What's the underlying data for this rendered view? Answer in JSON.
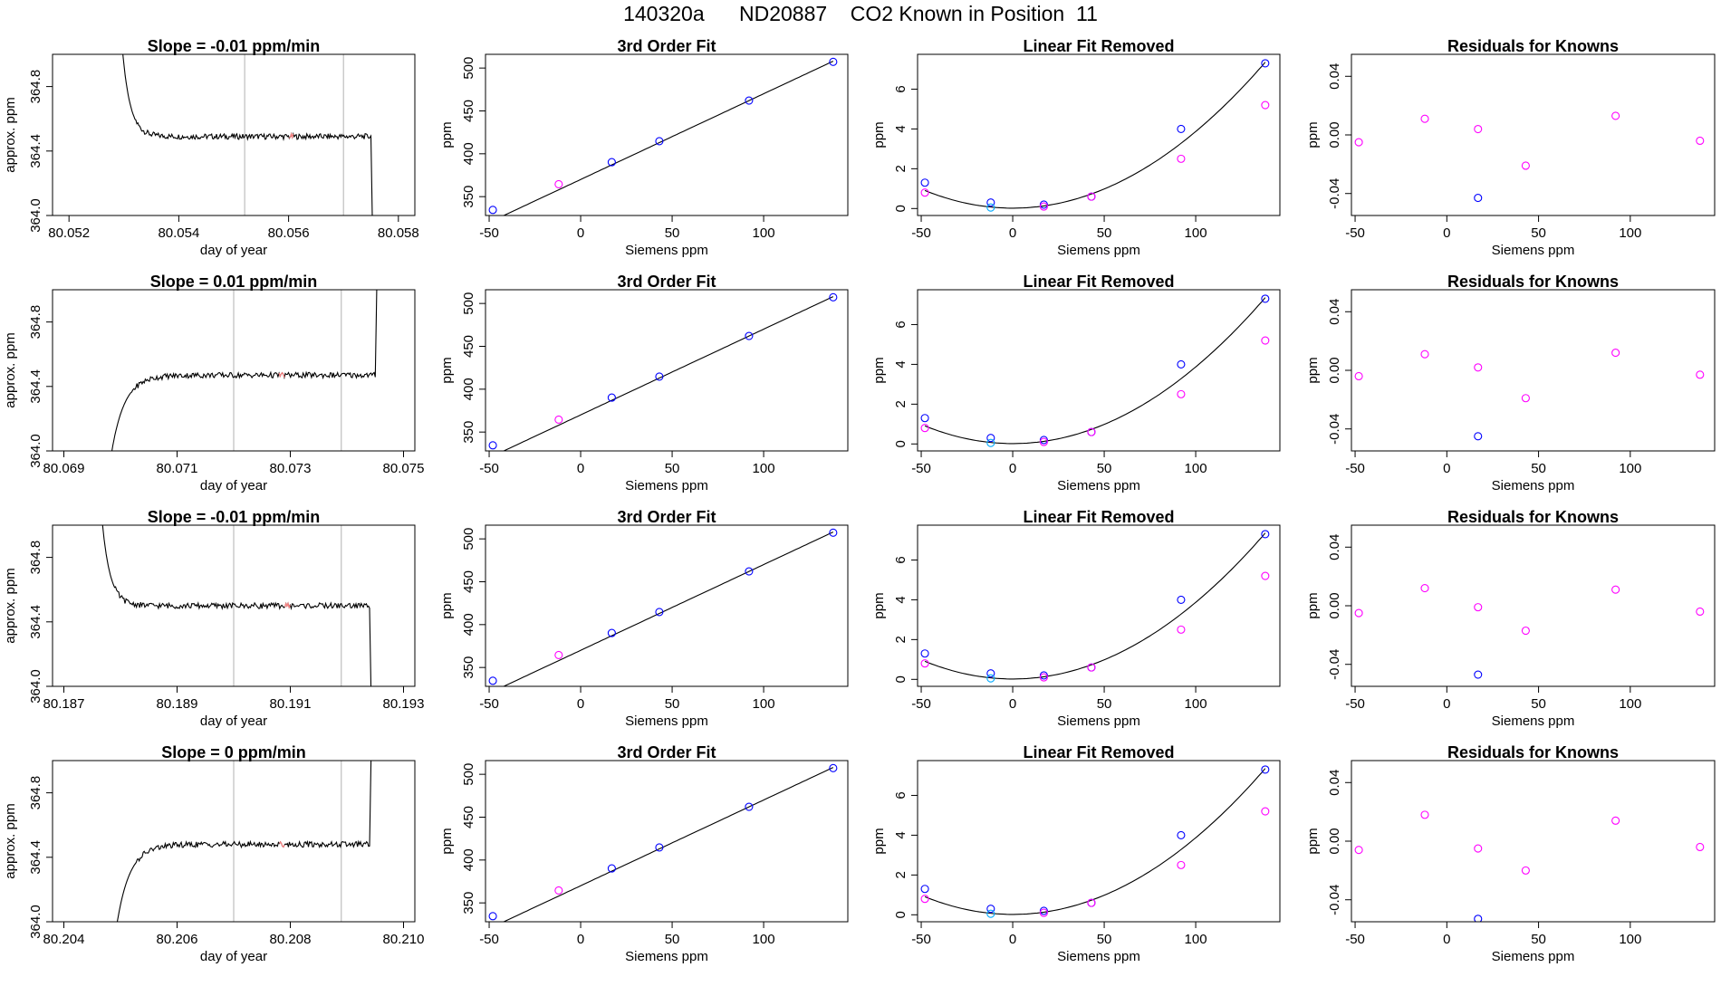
{
  "title": "140320a      ND20887    CO2 Known in Position  11",
  "colors": {
    "frame": "#000000",
    "trace": "#000000",
    "trace_highlight": "#ff8080",
    "vline": "#bebebe",
    "fit_line": "#000000",
    "point_blue": "#0000ff",
    "point_lightblue": "#00aaff",
    "point_magenta": "#ff00ff"
  },
  "chart_data": [
    {
      "type": "line",
      "row": 0,
      "col": 0,
      "title": "Slope =  -0.01  ppm/min",
      "xlabel": "day of year",
      "ylabel": "approx. ppm",
      "xlim": [
        80.0517,
        80.0583
      ],
      "ylim": [
        364.0,
        365.0
      ],
      "xticks": [
        80.052,
        80.054,
        80.056,
        80.058
      ],
      "xtick_labels": [
        "80.052",
        "80.054",
        "80.056",
        "80.058"
      ],
      "yticks": [
        364.0,
        364.4,
        364.8
      ],
      "ytick_labels": [
        "364.0",
        "364.4",
        "364.8"
      ],
      "vlines": [
        80.0552,
        80.057
      ],
      "shape": "down",
      "x_start": 80.0529,
      "x_settle": 80.0534,
      "x_end": 80.0575,
      "plateau": 364.49,
      "highlight": [
        80.056,
        80.0561
      ]
    },
    {
      "type": "scatter",
      "row": 0,
      "col": 1,
      "title": "3rd Order Fit",
      "xlabel": "Siemens ppm",
      "ylabel": "ppm",
      "xlim": [
        -52,
        146
      ],
      "ylim": [
        328,
        516
      ],
      "xticks": [
        -50,
        0,
        50,
        100
      ],
      "yticks": [
        350,
        400,
        450,
        500
      ],
      "fit": {
        "type": "poly",
        "coef": [
          370.0,
          1.0,
          0.0,
          0.0
        ],
        "range": [
          -48,
          138
        ]
      },
      "points": [
        {
          "x": -48,
          "y": 334.5,
          "color": "blue"
        },
        {
          "x": -12,
          "y": 364.5,
          "color": "magenta"
        },
        {
          "x": 17,
          "y": 390.2,
          "color": "blue"
        },
        {
          "x": 43,
          "y": 414.7,
          "color": "blue"
        },
        {
          "x": 92,
          "y": 462.1,
          "color": "blue"
        },
        {
          "x": 138,
          "y": 507.2,
          "color": "blue"
        }
      ]
    },
    {
      "type": "scatter",
      "row": 0,
      "col": 2,
      "title": "Linear Fit Removed",
      "xlabel": "Siemens ppm",
      "ylabel": "ppm",
      "xlim": [
        -52,
        146
      ],
      "ylim": [
        -0.35,
        7.75
      ],
      "xticks": [
        -50,
        0,
        50,
        100
      ],
      "yticks": [
        0,
        2,
        4,
        6
      ],
      "fit": {
        "type": "poly",
        "coef": [
          0.02,
          0.0,
          0.000385,
          0.0
        ],
        "range": [
          -48,
          138
        ]
      },
      "points": [
        {
          "x": -48,
          "y": 1.3,
          "color": "blue"
        },
        {
          "x": -48,
          "y": 0.8,
          "color": "magenta"
        },
        {
          "x": -12,
          "y": 0.3,
          "color": "blue"
        },
        {
          "x": -12,
          "y": 0.05,
          "color": "lightblue"
        },
        {
          "x": 17,
          "y": 0.2,
          "color": "blue"
        },
        {
          "x": 17,
          "y": 0.1,
          "color": "magenta"
        },
        {
          "x": 43,
          "y": 0.6,
          "color": "blue"
        },
        {
          "x": 43,
          "y": 0.6,
          "color": "magenta"
        },
        {
          "x": 92,
          "y": 4.0,
          "color": "blue"
        },
        {
          "x": 92,
          "y": 2.5,
          "color": "magenta"
        },
        {
          "x": 138,
          "y": 7.3,
          "color": "blue"
        },
        {
          "x": 138,
          "y": 5.2,
          "color": "magenta"
        }
      ]
    },
    {
      "type": "scatter",
      "row": 0,
      "col": 3,
      "title": "Residuals for Knowns",
      "xlabel": "Siemens ppm",
      "ylabel": "ppm",
      "xlim": [
        -52,
        146
      ],
      "ylim": [
        -0.055,
        0.055
      ],
      "xticks": [
        -50,
        0,
        50,
        100
      ],
      "yticks": [
        -0.04,
        0.0,
        0.04
      ],
      "ytick_labels": [
        "-0.04",
        "0.00",
        "0.04"
      ],
      "points": [
        {
          "x": -48,
          "y": -0.005,
          "color": "magenta"
        },
        {
          "x": -12,
          "y": 0.011,
          "color": "magenta"
        },
        {
          "x": 17,
          "y": 0.004,
          "color": "magenta"
        },
        {
          "x": 17,
          "y": -0.043,
          "color": "blue"
        },
        {
          "x": 43,
          "y": -0.021,
          "color": "magenta"
        },
        {
          "x": 92,
          "y": 0.013,
          "color": "magenta"
        },
        {
          "x": 138,
          "y": -0.004,
          "color": "magenta"
        }
      ]
    },
    {
      "type": "line",
      "row": 1,
      "col": 0,
      "title": "Slope =  0.01  ppm/min",
      "xlabel": "day of year",
      "ylabel": "approx. ppm",
      "xlim": [
        80.0688,
        80.0752
      ],
      "ylim": [
        364.0,
        365.0
      ],
      "xticks": [
        80.069,
        80.071,
        80.073,
        80.075
      ],
      "xtick_labels": [
        "80.069",
        "80.071",
        "80.073",
        "80.075"
      ],
      "yticks": [
        364.0,
        364.4,
        364.8
      ],
      "ytick_labels": [
        "364.0",
        "364.4",
        "364.8"
      ],
      "vlines": [
        80.072,
        80.0739
      ],
      "shape": "up",
      "x_start": 80.0697,
      "x_settle": 80.0705,
      "x_end": 80.0745,
      "plateau": 364.47,
      "highlight": [
        80.0728,
        80.0729
      ]
    },
    {
      "type": "scatter",
      "row": 1,
      "col": 1,
      "title": "3rd Order Fit",
      "xlabel": "Siemens ppm",
      "ylabel": "ppm",
      "xlim": [
        -52,
        146
      ],
      "ylim": [
        328,
        516
      ],
      "xticks": [
        -50,
        0,
        50,
        100
      ],
      "yticks": [
        350,
        400,
        450,
        500
      ],
      "fit": {
        "type": "poly",
        "coef": [
          370.0,
          1.0,
          0.0,
          0.0
        ],
        "range": [
          -48,
          138
        ]
      },
      "points": [
        {
          "x": -48,
          "y": 334.5,
          "color": "blue"
        },
        {
          "x": -12,
          "y": 364.5,
          "color": "magenta"
        },
        {
          "x": 17,
          "y": 390.2,
          "color": "blue"
        },
        {
          "x": 43,
          "y": 414.7,
          "color": "blue"
        },
        {
          "x": 92,
          "y": 462.1,
          "color": "blue"
        },
        {
          "x": 138,
          "y": 507.2,
          "color": "blue"
        }
      ]
    },
    {
      "type": "scatter",
      "row": 1,
      "col": 2,
      "title": "Linear Fit Removed",
      "xlabel": "Siemens ppm",
      "ylabel": "ppm",
      "xlim": [
        -52,
        146
      ],
      "ylim": [
        -0.35,
        7.75
      ],
      "xticks": [
        -50,
        0,
        50,
        100
      ],
      "yticks": [
        0,
        2,
        4,
        6
      ],
      "fit": {
        "type": "poly",
        "coef": [
          0.02,
          0.0,
          0.000385,
          0.0
        ],
        "range": [
          -48,
          138
        ]
      },
      "points": [
        {
          "x": -48,
          "y": 1.3,
          "color": "blue"
        },
        {
          "x": -48,
          "y": 0.8,
          "color": "magenta"
        },
        {
          "x": -12,
          "y": 0.3,
          "color": "blue"
        },
        {
          "x": -12,
          "y": 0.05,
          "color": "lightblue"
        },
        {
          "x": 17,
          "y": 0.2,
          "color": "blue"
        },
        {
          "x": 17,
          "y": 0.1,
          "color": "magenta"
        },
        {
          "x": 43,
          "y": 0.6,
          "color": "blue"
        },
        {
          "x": 43,
          "y": 0.6,
          "color": "magenta"
        },
        {
          "x": 92,
          "y": 4.0,
          "color": "blue"
        },
        {
          "x": 92,
          "y": 2.5,
          "color": "magenta"
        },
        {
          "x": 138,
          "y": 7.3,
          "color": "blue"
        },
        {
          "x": 138,
          "y": 5.2,
          "color": "magenta"
        }
      ]
    },
    {
      "type": "scatter",
      "row": 1,
      "col": 3,
      "title": "Residuals for Knowns",
      "xlabel": "Siemens ppm",
      "ylabel": "ppm",
      "xlim": [
        -52,
        146
      ],
      "ylim": [
        -0.055,
        0.055
      ],
      "xticks": [
        -50,
        0,
        50,
        100
      ],
      "yticks": [
        -0.04,
        0.0,
        0.04
      ],
      "ytick_labels": [
        "-0.04",
        "0.00",
        "0.04"
      ],
      "points": [
        {
          "x": -48,
          "y": -0.004,
          "color": "magenta"
        },
        {
          "x": -12,
          "y": 0.011,
          "color": "magenta"
        },
        {
          "x": 17,
          "y": 0.002,
          "color": "magenta"
        },
        {
          "x": 17,
          "y": -0.045,
          "color": "blue"
        },
        {
          "x": 43,
          "y": -0.019,
          "color": "magenta"
        },
        {
          "x": 92,
          "y": 0.012,
          "color": "magenta"
        },
        {
          "x": 138,
          "y": -0.003,
          "color": "magenta"
        }
      ]
    },
    {
      "type": "line",
      "row": 2,
      "col": 0,
      "title": "Slope =  -0.01  ppm/min",
      "xlabel": "day of year",
      "ylabel": "approx. ppm",
      "xlim": [
        80.1868,
        80.1932
      ],
      "ylim": [
        364.0,
        365.0
      ],
      "xticks": [
        80.187,
        80.189,
        80.191,
        80.193
      ],
      "xtick_labels": [
        "80.187",
        "80.189",
        "80.191",
        "80.193"
      ],
      "yticks": [
        364.0,
        364.4,
        364.8
      ],
      "ytick_labels": [
        "364.0",
        "364.4",
        "364.8"
      ],
      "vlines": [
        80.19,
        80.1919
      ],
      "shape": "down",
      "x_start": 80.1876,
      "x_settle": 80.1881,
      "x_end": 80.1924,
      "plateau": 364.5,
      "highlight": [
        80.1909,
        80.191
      ]
    },
    {
      "type": "scatter",
      "row": 2,
      "col": 1,
      "title": "3rd Order Fit",
      "xlabel": "Siemens ppm",
      "ylabel": "ppm",
      "xlim": [
        -52,
        146
      ],
      "ylim": [
        328,
        516
      ],
      "xticks": [
        -50,
        0,
        50,
        100
      ],
      "yticks": [
        350,
        400,
        450,
        500
      ],
      "fit": {
        "type": "poly",
        "coef": [
          370.0,
          1.0,
          0.0,
          0.0
        ],
        "range": [
          -48,
          138
        ]
      },
      "points": [
        {
          "x": -48,
          "y": 334.5,
          "color": "blue"
        },
        {
          "x": -12,
          "y": 364.5,
          "color": "magenta"
        },
        {
          "x": 17,
          "y": 390.2,
          "color": "blue"
        },
        {
          "x": 43,
          "y": 414.7,
          "color": "blue"
        },
        {
          "x": 92,
          "y": 462.1,
          "color": "blue"
        },
        {
          "x": 138,
          "y": 507.2,
          "color": "blue"
        }
      ]
    },
    {
      "type": "scatter",
      "row": 2,
      "col": 2,
      "title": "Linear Fit Removed",
      "xlabel": "Siemens ppm",
      "ylabel": "ppm",
      "xlim": [
        -52,
        146
      ],
      "ylim": [
        -0.35,
        7.75
      ],
      "xticks": [
        -50,
        0,
        50,
        100
      ],
      "yticks": [
        0,
        2,
        4,
        6
      ],
      "fit": {
        "type": "poly",
        "coef": [
          0.02,
          0.0,
          0.000385,
          0.0
        ],
        "range": [
          -48,
          138
        ]
      },
      "points": [
        {
          "x": -48,
          "y": 1.3,
          "color": "blue"
        },
        {
          "x": -48,
          "y": 0.8,
          "color": "magenta"
        },
        {
          "x": -12,
          "y": 0.3,
          "color": "blue"
        },
        {
          "x": -12,
          "y": 0.05,
          "color": "lightblue"
        },
        {
          "x": 17,
          "y": 0.2,
          "color": "blue"
        },
        {
          "x": 17,
          "y": 0.1,
          "color": "magenta"
        },
        {
          "x": 43,
          "y": 0.6,
          "color": "blue"
        },
        {
          "x": 43,
          "y": 0.6,
          "color": "magenta"
        },
        {
          "x": 92,
          "y": 4.0,
          "color": "blue"
        },
        {
          "x": 92,
          "y": 2.5,
          "color": "magenta"
        },
        {
          "x": 138,
          "y": 7.3,
          "color": "blue"
        },
        {
          "x": 138,
          "y": 5.2,
          "color": "magenta"
        }
      ]
    },
    {
      "type": "scatter",
      "row": 2,
      "col": 3,
      "title": "Residuals for Knowns",
      "xlabel": "Siemens ppm",
      "ylabel": "ppm",
      "xlim": [
        -52,
        146
      ],
      "ylim": [
        -0.055,
        0.055
      ],
      "xticks": [
        -50,
        0,
        50,
        100
      ],
      "yticks": [
        -0.04,
        0.0,
        0.04
      ],
      "ytick_labels": [
        "-0.04",
        "0.00",
        "0.04"
      ],
      "points": [
        {
          "x": -48,
          "y": -0.005,
          "color": "magenta"
        },
        {
          "x": -12,
          "y": 0.012,
          "color": "magenta"
        },
        {
          "x": 17,
          "y": -0.001,
          "color": "magenta"
        },
        {
          "x": 17,
          "y": -0.047,
          "color": "blue"
        },
        {
          "x": 43,
          "y": -0.017,
          "color": "magenta"
        },
        {
          "x": 92,
          "y": 0.011,
          "color": "magenta"
        },
        {
          "x": 138,
          "y": -0.004,
          "color": "magenta"
        }
      ]
    },
    {
      "type": "line",
      "row": 3,
      "col": 0,
      "title": "Slope =  0  ppm/min",
      "xlabel": "day of year",
      "ylabel": "approx. ppm",
      "xlim": [
        80.2038,
        80.2102
      ],
      "ylim": [
        364.0,
        365.0
      ],
      "xticks": [
        80.204,
        80.206,
        80.208,
        80.21
      ],
      "xtick_labels": [
        "80.204",
        "80.206",
        "80.208",
        "80.210"
      ],
      "yticks": [
        364.0,
        364.4,
        364.8
      ],
      "ytick_labels": [
        "364.0",
        "364.4",
        "364.8"
      ],
      "vlines": [
        80.207,
        80.2089
      ],
      "shape": "up",
      "x_start": 80.2048,
      "x_settle": 80.2056,
      "x_end": 80.2094,
      "plateau": 364.48,
      "highlight": [
        80.2078,
        80.2079
      ]
    },
    {
      "type": "scatter",
      "row": 3,
      "col": 1,
      "title": "3rd Order Fit",
      "xlabel": "Siemens ppm",
      "ylabel": "ppm",
      "xlim": [
        -52,
        146
      ],
      "ylim": [
        328,
        516
      ],
      "xticks": [
        -50,
        0,
        50,
        100
      ],
      "yticks": [
        350,
        400,
        450,
        500
      ],
      "fit": {
        "type": "poly",
        "coef": [
          370.0,
          1.0,
          0.0,
          0.0
        ],
        "range": [
          -48,
          138
        ]
      },
      "points": [
        {
          "x": -48,
          "y": 334.5,
          "color": "blue"
        },
        {
          "x": -12,
          "y": 364.5,
          "color": "magenta"
        },
        {
          "x": 17,
          "y": 390.2,
          "color": "blue"
        },
        {
          "x": 43,
          "y": 414.7,
          "color": "blue"
        },
        {
          "x": 92,
          "y": 462.1,
          "color": "blue"
        },
        {
          "x": 138,
          "y": 507.2,
          "color": "blue"
        }
      ]
    },
    {
      "type": "scatter",
      "row": 3,
      "col": 2,
      "title": "Linear Fit Removed",
      "xlabel": "Siemens ppm",
      "ylabel": "ppm",
      "xlim": [
        -52,
        146
      ],
      "ylim": [
        -0.35,
        7.75
      ],
      "xticks": [
        -50,
        0,
        50,
        100
      ],
      "yticks": [
        0,
        2,
        4,
        6
      ],
      "fit": {
        "type": "poly",
        "coef": [
          0.02,
          0.0,
          0.000385,
          0.0
        ],
        "range": [
          -48,
          138
        ]
      },
      "points": [
        {
          "x": -48,
          "y": 1.3,
          "color": "blue"
        },
        {
          "x": -48,
          "y": 0.8,
          "color": "magenta"
        },
        {
          "x": -12,
          "y": 0.3,
          "color": "blue"
        },
        {
          "x": -12,
          "y": 0.05,
          "color": "lightblue"
        },
        {
          "x": 17,
          "y": 0.2,
          "color": "blue"
        },
        {
          "x": 17,
          "y": 0.1,
          "color": "magenta"
        },
        {
          "x": 43,
          "y": 0.6,
          "color": "blue"
        },
        {
          "x": 43,
          "y": 0.6,
          "color": "magenta"
        },
        {
          "x": 92,
          "y": 4.0,
          "color": "blue"
        },
        {
          "x": 92,
          "y": 2.5,
          "color": "magenta"
        },
        {
          "x": 138,
          "y": 7.3,
          "color": "blue"
        },
        {
          "x": 138,
          "y": 5.2,
          "color": "magenta"
        }
      ]
    },
    {
      "type": "scatter",
      "row": 3,
      "col": 3,
      "title": "Residuals for Knowns",
      "xlabel": "Siemens ppm",
      "ylabel": "ppm",
      "xlim": [
        -52,
        146
      ],
      "ylim": [
        -0.055,
        0.055
      ],
      "xticks": [
        -50,
        0,
        50,
        100
      ],
      "yticks": [
        -0.04,
        0.0,
        0.04
      ],
      "ytick_labels": [
        "-0.04",
        "0.00",
        "0.04"
      ],
      "points": [
        {
          "x": -48,
          "y": -0.006,
          "color": "magenta"
        },
        {
          "x": -12,
          "y": 0.018,
          "color": "magenta"
        },
        {
          "x": 17,
          "y": -0.005,
          "color": "magenta"
        },
        {
          "x": 17,
          "y": -0.053,
          "color": "blue"
        },
        {
          "x": 43,
          "y": -0.02,
          "color": "magenta"
        },
        {
          "x": 92,
          "y": 0.014,
          "color": "magenta"
        },
        {
          "x": 138,
          "y": -0.004,
          "color": "magenta"
        }
      ]
    }
  ]
}
